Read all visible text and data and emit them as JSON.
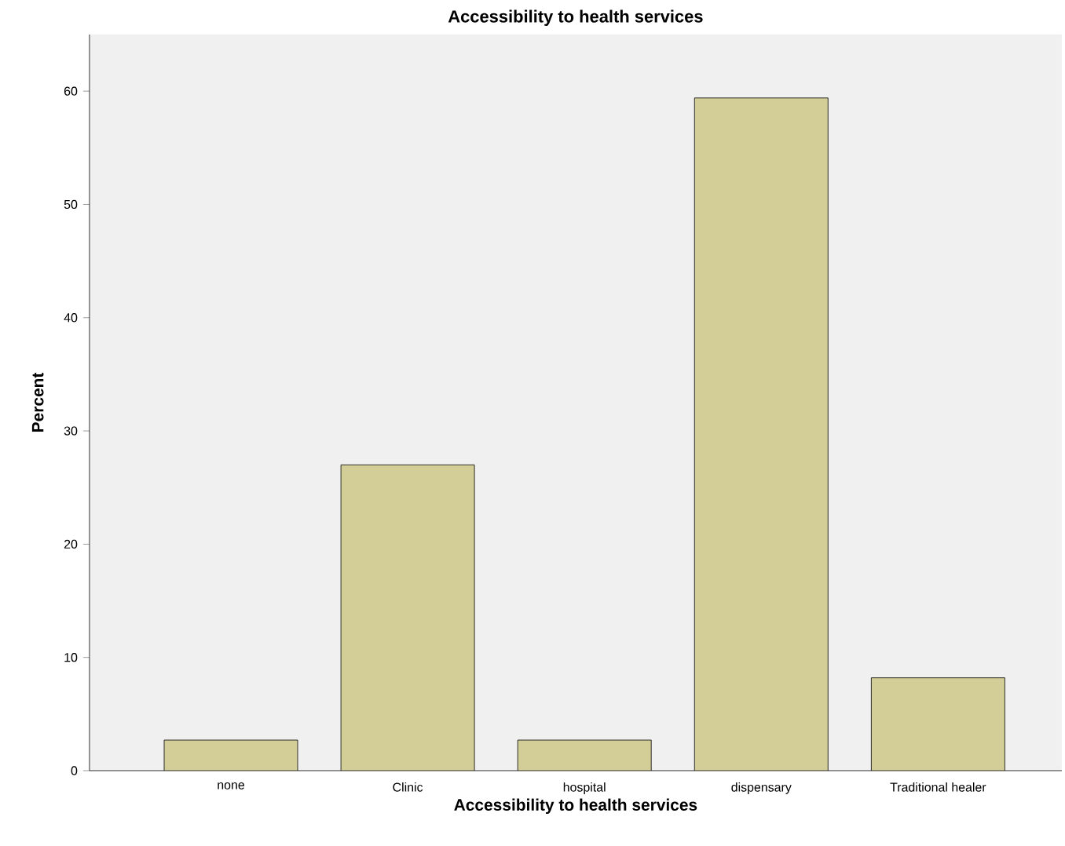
{
  "chart_data": {
    "type": "bar",
    "title": "Accessibility to health services",
    "xlabel": "Accessibility to health services",
    "ylabel": "Percent",
    "categories": [
      "none",
      "Clinic",
      "hospital",
      "dispensary",
      "Traditional healer"
    ],
    "values": [
      2.7,
      27.0,
      2.7,
      59.4,
      8.2
    ],
    "color": "#d3ce97",
    "ylim": [
      0,
      65
    ],
    "yticks": [
      0,
      10,
      20,
      30,
      40,
      50,
      60
    ],
    "grid": false
  }
}
